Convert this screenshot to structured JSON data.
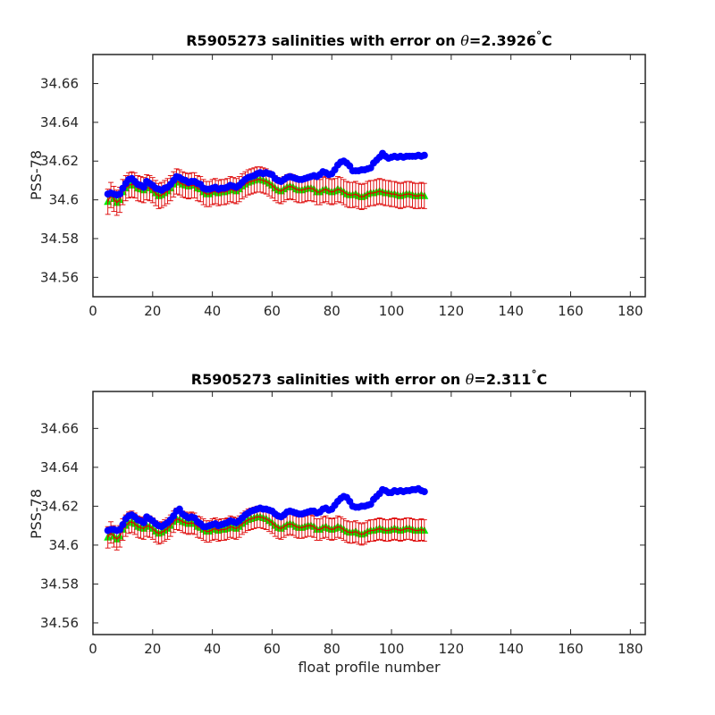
{
  "colors": {
    "calibrated": "#0000ff",
    "mapped": "#00ee00",
    "mapped_error": "#dd0000",
    "axes": "#262626"
  },
  "chart_data": [
    {
      "type": "scatter",
      "title_prefix": "R5905273 salinities with error on ",
      "title_theta": "θ",
      "title_value": "=2.3926",
      "title_degree": "°",
      "title_unit": "C",
      "xlabel": "",
      "ylabel": "PSS-78",
      "xlim": [
        0,
        185
      ],
      "ylim": [
        34.55,
        34.675
      ],
      "xticks": [
        0,
        20,
        40,
        60,
        80,
        100,
        120,
        140,
        160,
        180
      ],
      "xticklabels": [
        "0",
        "20",
        "40",
        "60",
        "80",
        "100",
        "120",
        "140",
        "160",
        "180"
      ],
      "yticks": [
        34.56,
        34.58,
        34.6,
        34.62,
        34.64,
        34.66
      ],
      "yticklabels": [
        "34.56",
        "34.58",
        "34.6",
        "34.62",
        "34.64",
        "34.66"
      ],
      "grid": false,
      "x_start": 5,
      "series": [
        {
          "marker": "circle",
          "values": [
            34.603,
            34.6035,
            34.603,
            34.6025,
            34.603,
            34.606,
            34.6085,
            34.6105,
            34.611,
            34.6095,
            34.608,
            34.6075,
            34.6065,
            34.6095,
            34.6085,
            34.6075,
            34.606,
            34.6055,
            34.605,
            34.606,
            34.6065,
            34.608,
            34.61,
            34.612,
            34.6115,
            34.6105,
            34.61,
            34.609,
            34.6095,
            34.6095,
            34.6085,
            34.608,
            34.606,
            34.6055,
            34.6055,
            34.606,
            34.6065,
            34.6055,
            34.606,
            34.606,
            34.6065,
            34.6075,
            34.607,
            34.6065,
            34.6075,
            34.609,
            34.6105,
            34.6115,
            34.612,
            34.6125,
            34.6135,
            34.614,
            34.6135,
            34.614,
            34.6135,
            34.613,
            34.611,
            34.61,
            34.6095,
            34.6105,
            34.6115,
            34.612,
            34.6115,
            34.611,
            34.6105,
            34.6105,
            34.611,
            34.6115,
            34.612,
            34.6125,
            34.612,
            34.613,
            34.6145,
            34.614,
            34.613,
            34.6135,
            34.6155,
            34.618,
            34.6195,
            34.62,
            34.619,
            34.6175,
            34.615,
            34.615,
            34.615,
            34.6155,
            34.6155,
            34.616,
            34.6165,
            34.619,
            34.6205,
            34.622,
            34.624,
            34.6225,
            34.6215,
            34.622,
            34.6225,
            34.622,
            34.6225,
            34.622,
            34.6225,
            34.6225,
            34.6225,
            34.6225,
            34.623,
            34.6225,
            34.623
          ]
        },
        {
          "marker": "triangle",
          "values": [
            34.599,
            34.6025,
            34.6005,
            34.5985,
            34.6,
            34.604,
            34.606,
            34.6075,
            34.608,
            34.6075,
            34.606,
            34.6055,
            34.605,
            34.6065,
            34.606,
            34.605,
            34.6035,
            34.602,
            34.6025,
            34.6035,
            34.6045,
            34.606,
            34.608,
            34.6095,
            34.609,
            34.608,
            34.6075,
            34.607,
            34.6075,
            34.6075,
            34.606,
            34.6055,
            34.604,
            34.603,
            34.603,
            34.604,
            34.6045,
            34.6035,
            34.604,
            34.604,
            34.6045,
            34.6055,
            34.605,
            34.6045,
            34.6055,
            34.607,
            34.608,
            34.609,
            34.6095,
            34.61,
            34.6105,
            34.6105,
            34.61,
            34.6095,
            34.6085,
            34.6075,
            34.606,
            34.605,
            34.6045,
            34.6055,
            34.6065,
            34.607,
            34.6065,
            34.6055,
            34.605,
            34.605,
            34.6055,
            34.606,
            34.606,
            34.6055,
            34.604,
            34.604,
            34.605,
            34.6055,
            34.6045,
            34.604,
            34.6045,
            34.6055,
            34.605,
            34.604,
            34.603,
            34.6025,
            34.6025,
            34.603,
            34.602,
            34.6015,
            34.602,
            34.603,
            34.6035,
            34.6035,
            34.604,
            34.6045,
            34.604,
            34.6035,
            34.6035,
            34.603,
            34.603,
            34.6025,
            34.602,
            34.6025,
            34.603,
            34.603,
            34.6025,
            34.602,
            34.602,
            34.6025,
            34.602
          ]
        }
      ],
      "mapped_error_halfwidth": 0.0065
    },
    {
      "type": "scatter",
      "title_prefix": "R5905273 salinities with error on ",
      "title_theta": "θ",
      "title_value": "=2.311",
      "title_degree": "°",
      "title_unit": "C",
      "xlabel": "float profile number",
      "ylabel": "PSS-78",
      "xlim": [
        0,
        185
      ],
      "ylim": [
        34.554,
        34.679
      ],
      "xticks": [
        0,
        20,
        40,
        60,
        80,
        100,
        120,
        140,
        160,
        180
      ],
      "xticklabels": [
        "0",
        "20",
        "40",
        "60",
        "80",
        "100",
        "120",
        "140",
        "160",
        "180"
      ],
      "yticks": [
        34.56,
        34.58,
        34.6,
        34.62,
        34.64,
        34.66
      ],
      "yticklabels": [
        "34.56",
        "34.58",
        "34.6",
        "34.62",
        "34.64",
        "34.66"
      ],
      "grid": false,
      "x_start": 5,
      "series": [
        {
          "marker": "circle",
          "values": [
            34.6075,
            34.608,
            34.608,
            34.6075,
            34.608,
            34.6105,
            34.6135,
            34.615,
            34.6155,
            34.6145,
            34.613,
            34.6125,
            34.6115,
            34.6145,
            34.6135,
            34.6125,
            34.611,
            34.61,
            34.6095,
            34.6105,
            34.6115,
            34.613,
            34.615,
            34.6175,
            34.6185,
            34.616,
            34.615,
            34.614,
            34.6145,
            34.614,
            34.612,
            34.611,
            34.6095,
            34.6095,
            34.61,
            34.6105,
            34.611,
            34.61,
            34.6105,
            34.611,
            34.6115,
            34.6125,
            34.612,
            34.6115,
            34.6125,
            34.614,
            34.6155,
            34.6165,
            34.6175,
            34.618,
            34.6185,
            34.619,
            34.6185,
            34.6185,
            34.618,
            34.6175,
            34.616,
            34.615,
            34.6145,
            34.6155,
            34.617,
            34.6175,
            34.617,
            34.6165,
            34.616,
            34.616,
            34.6165,
            34.617,
            34.6175,
            34.6175,
            34.6165,
            34.617,
            34.6185,
            34.619,
            34.618,
            34.6185,
            34.6205,
            34.6225,
            34.624,
            34.625,
            34.6245,
            34.6225,
            34.62,
            34.6195,
            34.6195,
            34.62,
            34.62,
            34.6205,
            34.621,
            34.6235,
            34.625,
            34.6265,
            34.6285,
            34.628,
            34.627,
            34.627,
            34.628,
            34.6275,
            34.628,
            34.6275,
            34.628,
            34.628,
            34.6285,
            34.6285,
            34.629,
            34.628,
            34.6275
          ]
        },
        {
          "marker": "triangle",
          "values": [
            34.604,
            34.6065,
            34.6045,
            34.603,
            34.6045,
            34.608,
            34.61,
            34.6115,
            34.612,
            34.611,
            34.6095,
            34.609,
            34.6085,
            34.61,
            34.6095,
            34.6085,
            34.607,
            34.606,
            34.6065,
            34.6075,
            34.6085,
            34.61,
            34.612,
            34.6135,
            34.613,
            34.612,
            34.6115,
            34.611,
            34.6115,
            34.611,
            34.6095,
            34.609,
            34.608,
            34.607,
            34.607,
            34.608,
            34.6085,
            34.6075,
            34.608,
            34.608,
            34.6085,
            34.6095,
            34.609,
            34.6085,
            34.6095,
            34.611,
            34.612,
            34.613,
            34.6135,
            34.614,
            34.6145,
            34.6145,
            34.614,
            34.6135,
            34.6125,
            34.6115,
            34.61,
            34.609,
            34.6085,
            34.6095,
            34.6105,
            34.611,
            34.6105,
            34.6095,
            34.609,
            34.609,
            34.6095,
            34.61,
            34.61,
            34.6095,
            34.608,
            34.608,
            34.609,
            34.6095,
            34.6085,
            34.608,
            34.6085,
            34.6095,
            34.609,
            34.608,
            34.607,
            34.6065,
            34.6065,
            34.607,
            34.606,
            34.6055,
            34.606,
            34.607,
            34.6075,
            34.6075,
            34.608,
            34.6085,
            34.608,
            34.6075,
            34.6075,
            34.608,
            34.6085,
            34.608,
            34.6075,
            34.608,
            34.6085,
            34.6085,
            34.608,
            34.6075,
            34.6075,
            34.608,
            34.6075
          ]
        }
      ],
      "mapped_error_halfwidth": 0.0055
    }
  ]
}
